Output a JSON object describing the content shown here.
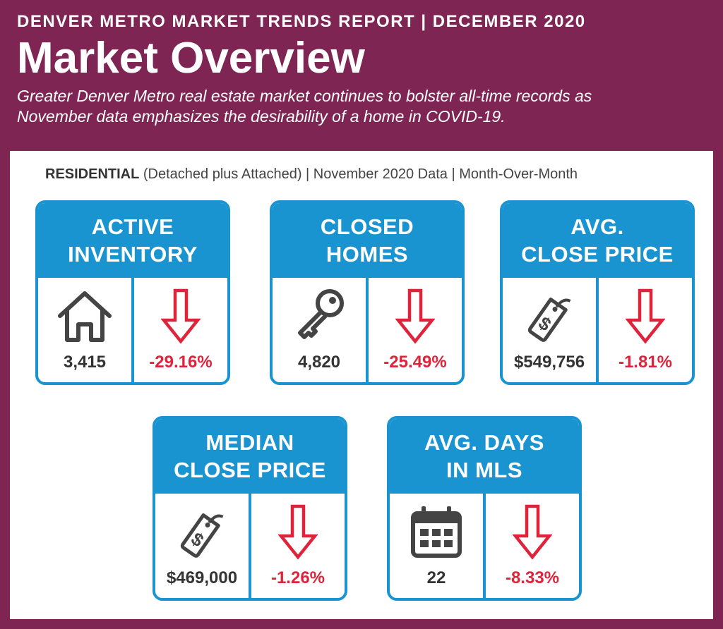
{
  "header": {
    "kicker": "DENVER METRO MARKET TRENDS REPORT  |  DECEMBER 2020",
    "title": "Market Overview",
    "subtitle_line1": "Greater Denver Metro real estate market continues to bolster all-time records as",
    "subtitle_line2": "November data emphasizes the desirability of a home in COVID-19."
  },
  "section": {
    "bold": "RESIDENTIAL",
    "rest": " (Detached plus Attached) | November 2020 Data | Month-Over-Month"
  },
  "colors": {
    "background": "#7e2553",
    "card_blue": "#1a94d1",
    "decline_red": "#e0223a",
    "icon_gray": "#444444"
  },
  "cards": [
    {
      "title_line1": "ACTIVE",
      "title_line2": "INVENTORY",
      "icon": "house-icon",
      "value": "3,415",
      "change": "-29.16%",
      "direction": "down"
    },
    {
      "title_line1": "CLOSED",
      "title_line2": "HOMES",
      "icon": "key-icon",
      "value": "4,820",
      "change": "-25.49%",
      "direction": "down"
    },
    {
      "title_line1": "AVG.",
      "title_line2": "CLOSE PRICE",
      "icon": "price-tag-icon",
      "value": "$549,756",
      "change": "-1.81%",
      "direction": "down"
    },
    {
      "title_line1": "MEDIAN",
      "title_line2": "CLOSE PRICE",
      "icon": "price-tag-icon",
      "value": "$469,000",
      "change": "-1.26%",
      "direction": "down"
    },
    {
      "title_line1": "AVG. DAYS",
      "title_line2": "IN MLS",
      "icon": "calendar-icon",
      "value": "22",
      "change": "-8.33%",
      "direction": "down"
    }
  ]
}
